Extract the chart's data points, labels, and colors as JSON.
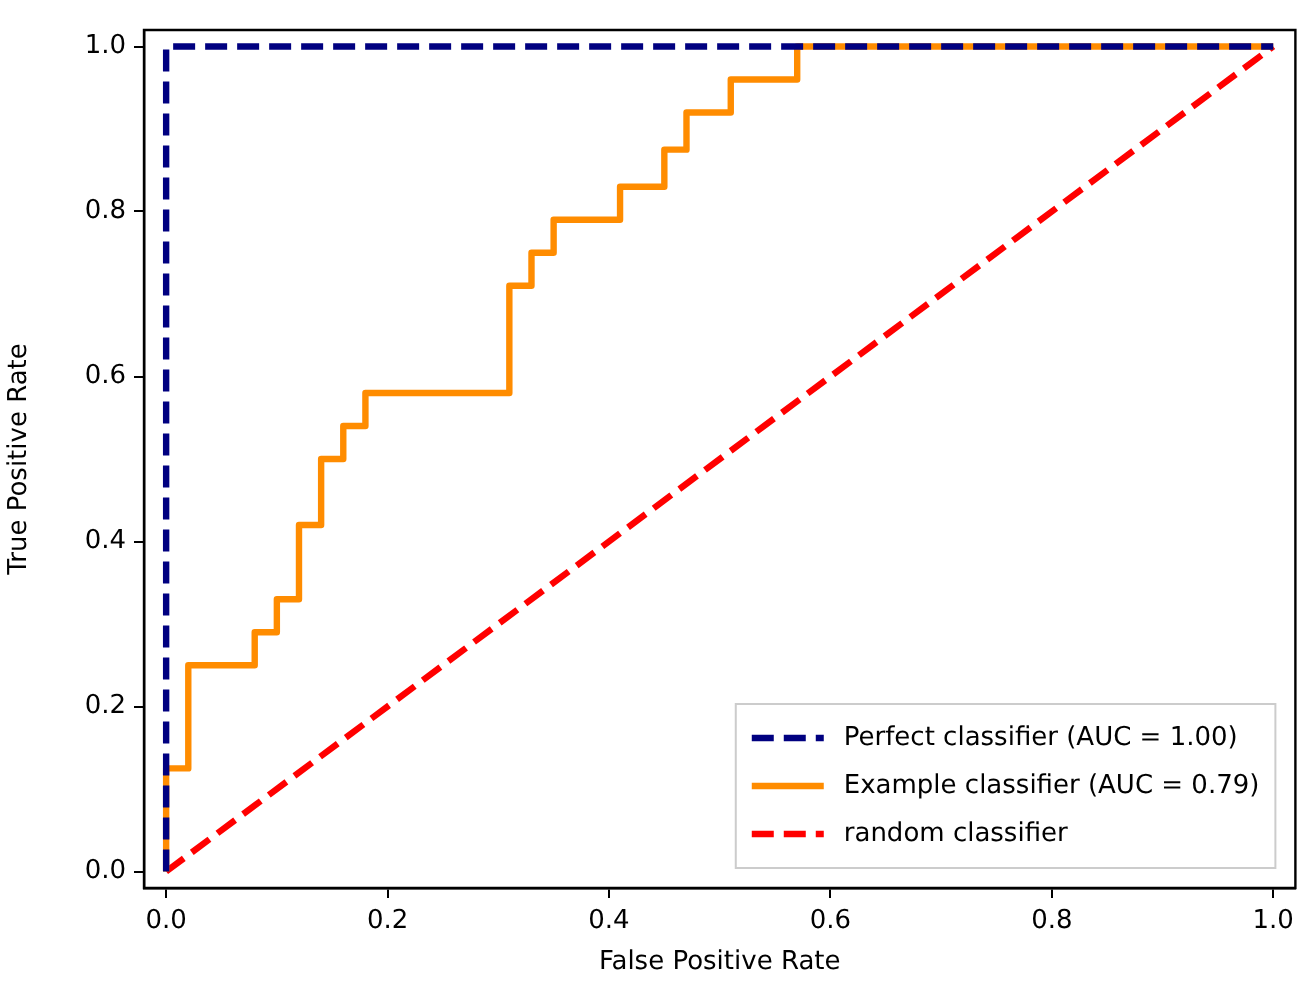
{
  "chart_data": {
    "type": "line",
    "xlabel": "False Positive Rate",
    "ylabel": "True Positive Rate",
    "xlim": [
      -0.02,
      1.02
    ],
    "ylim": [
      -0.02,
      1.02
    ],
    "xticks": [
      {
        "value": 0,
        "label": "0.0"
      },
      {
        "value": 0.2,
        "label": "0.2"
      },
      {
        "value": 0.4,
        "label": "0.4"
      },
      {
        "value": 0.6,
        "label": "0.6"
      },
      {
        "value": 0.8,
        "label": "0.8"
      },
      {
        "value": 1,
        "label": "1.0"
      }
    ],
    "yticks": [
      {
        "value": 0,
        "label": "0.0"
      },
      {
        "value": 0.2,
        "label": "0.2"
      },
      {
        "value": 0.4,
        "label": "0.4"
      },
      {
        "value": 0.6,
        "label": "0.6"
      },
      {
        "value": 0.8,
        "label": "0.8"
      },
      {
        "value": 1,
        "label": "1.0"
      }
    ],
    "grid": false,
    "legend": "bottom right",
    "marker": "none",
    "series": [
      {
        "name": "Perfect classifier (AUC = 1.00)",
        "color": "#000080",
        "line_style": "dashed",
        "x": [
          0,
          0,
          1
        ],
        "values": [
          0,
          1,
          1
        ]
      },
      {
        "name": "Example classifier (AUC = 0.79)",
        "color": "#ff8c00",
        "line_style": "solid",
        "x": [
          0,
          0,
          0.02,
          0.02,
          0.08,
          0.08,
          0.1,
          0.1,
          0.12,
          0.12,
          0.14,
          0.14,
          0.16,
          0.16,
          0.18,
          0.18,
          0.31,
          0.31,
          0.33,
          0.33,
          0.35,
          0.35,
          0.41,
          0.41,
          0.45,
          0.45,
          0.47,
          0.47,
          0.51,
          0.51,
          0.57,
          0.57,
          1
        ],
        "values": [
          0,
          0.125,
          0.125,
          0.25,
          0.25,
          0.29,
          0.29,
          0.33,
          0.33,
          0.42,
          0.42,
          0.5,
          0.5,
          0.54,
          0.54,
          0.58,
          0.58,
          0.71,
          0.71,
          0.75,
          0.75,
          0.79,
          0.79,
          0.83,
          0.83,
          0.875,
          0.875,
          0.92,
          0.92,
          0.96,
          0.96,
          1,
          1
        ]
      },
      {
        "name": "random classifier",
        "color": "#ff0000",
        "line_style": "dashed",
        "x": [
          0,
          1
        ],
        "values": [
          0,
          1
        ]
      }
    ]
  }
}
